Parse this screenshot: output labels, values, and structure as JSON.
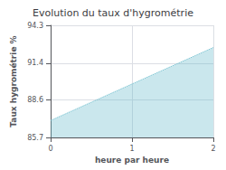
{
  "chart_data": {
    "type": "area",
    "title": "Evolution du taux d'hygrométrie",
    "xlabel": "heure par heure",
    "ylabel": "Taux hygrométrie %",
    "x": [
      0,
      2
    ],
    "values": [
      87.0,
      92.6
    ],
    "xlim": [
      0,
      2
    ],
    "xticks": [
      0,
      1,
      2
    ],
    "ylim": [
      85.7,
      94.3
    ],
    "yticks": [
      85.7,
      88.6,
      91.4,
      94.3
    ],
    "grid": true,
    "color": "#66bbcc",
    "line_style": "dotted"
  }
}
